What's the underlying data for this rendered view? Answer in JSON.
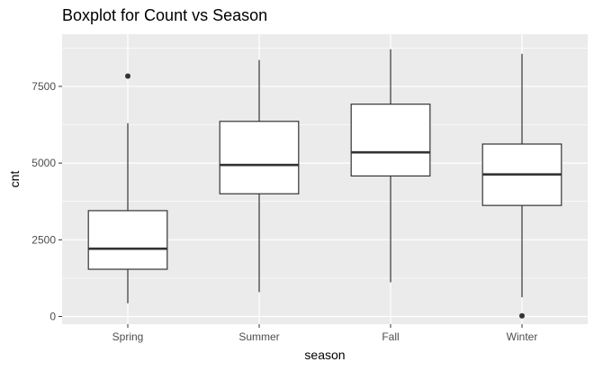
{
  "chart_data": {
    "type": "boxplot",
    "title": "Boxplot for Count vs Season",
    "xlabel": "season",
    "ylabel": "cnt",
    "categories": [
      "Spring",
      "Summer",
      "Fall",
      "Winter"
    ],
    "y_ticks": [
      0,
      2500,
      5000,
      7500
    ],
    "y_tick_labels": [
      "0",
      "2500",
      "5000",
      "7500"
    ],
    "ylim": [
      -250,
      9200
    ],
    "grid": true,
    "legend": "none",
    "colors": {
      "panel_background": "#ebebeb",
      "grid": "#ffffff",
      "box_fill": "#ffffff",
      "box_stroke": "#333333",
      "outlier": "#333333"
    },
    "boxes": [
      {
        "category": "Spring",
        "lower_whisker": 431,
        "q1": 1540,
        "median": 2210,
        "q3": 3450,
        "upper_whisker": 6300,
        "outliers": [
          7836
        ]
      },
      {
        "category": "Summer",
        "lower_whisker": 795,
        "q1": 4000,
        "median": 4940,
        "q3": 6360,
        "upper_whisker": 8360,
        "outliers": []
      },
      {
        "category": "Fall",
        "lower_whisker": 1115,
        "q1": 4580,
        "median": 5350,
        "q3": 6920,
        "upper_whisker": 8710,
        "outliers": []
      },
      {
        "category": "Winter",
        "lower_whisker": 627,
        "q1": 3620,
        "median": 4630,
        "q3": 5620,
        "upper_whisker": 8560,
        "outliers": [
          22
        ]
      }
    ]
  }
}
